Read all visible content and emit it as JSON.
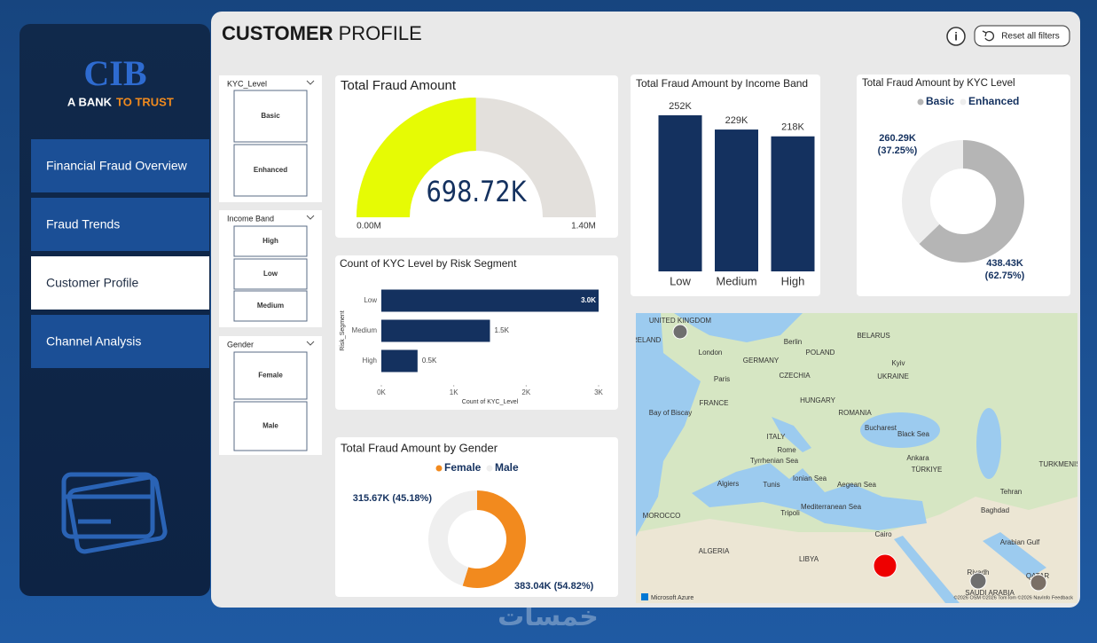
{
  "sidebar": {
    "logo": "CIB",
    "tagline": [
      "A BANK",
      "TO TRUST"
    ],
    "nav": [
      "Financial Fraud Overview",
      "Fraud Trends",
      "Customer Profile",
      "Channel Analysis"
    ],
    "active": 2
  },
  "header": {
    "title": [
      "CUSTOMER",
      "PROFILE"
    ],
    "info": "i",
    "reset": "Reset all filters"
  },
  "slicers": [
    {
      "title": "KYC_Level",
      "items": [
        "Basic",
        "Enhanced"
      ]
    },
    {
      "title": "Income Band",
      "items": [
        "High",
        "Low",
        "Medium"
      ]
    },
    {
      "title": "Gender",
      "items": [
        "Female",
        "Male"
      ]
    }
  ],
  "chart_data": [
    {
      "type": "gauge",
      "title": "Total Fraud Amount",
      "value": 698720,
      "value_label": "698.72K",
      "min": {
        "value": 0,
        "label": "0.00M"
      },
      "max": {
        "value": 1400000,
        "label": "1.40M"
      },
      "color": "#e6fb04",
      "track_color": "#e3e0dc"
    },
    {
      "type": "hbar",
      "title": "Count of KYC Level by Risk Segment",
      "categories": [
        "Low",
        "Medium",
        "High"
      ],
      "values": [
        3000,
        1500,
        500
      ],
      "value_labels": [
        "3.0K",
        "1.5K",
        "0.5K"
      ],
      "xlim": [
        0,
        3000
      ],
      "xticks": [
        {
          "value": 0,
          "label": "0K"
        },
        {
          "value": 1000,
          "label": "1K"
        },
        {
          "value": 2000,
          "label": "2K"
        },
        {
          "value": 3000,
          "label": "3K"
        }
      ],
      "x_label": "Count of KYC_Level",
      "y_label": "Risk_Segment",
      "color": "#14315f"
    },
    {
      "type": "bar",
      "title": "Total Fraud Amount by Income Band",
      "categories": [
        "Low",
        "Medium",
        "High"
      ],
      "values": [
        252000,
        229000,
        218000
      ],
      "value_labels": [
        "252K",
        "229K",
        "218K"
      ],
      "color": "#14315f"
    },
    {
      "type": "donut",
      "title": "Total Fraud Amount by KYC Level",
      "categories": [
        "Basic",
        "Enhanced"
      ],
      "values": [
        438430,
        260290
      ],
      "value_labels": [
        "438.43K (62.75%)",
        "260.29K (37.25%)"
      ],
      "colors": [
        "#b5b5b5",
        "#ededed"
      ]
    },
    {
      "type": "donut",
      "title": "Total Fraud Amount by Gender",
      "categories": [
        "Female",
        "Male"
      ],
      "values": [
        383040,
        315670
      ],
      "value_labels": [
        "383.04K (54.82%)",
        "315.67K (45.18%)"
      ],
      "colors": [
        "#f28a1e",
        "#efefef"
      ]
    }
  ],
  "map": {
    "labels": [
      "UNITED KINGDOM",
      "IRELAND",
      "London",
      "Paris",
      "FRANCE",
      "Bay of Biscay",
      "GERMANY",
      "Berlin",
      "POLAND",
      "CZECHIA",
      "BELARUS",
      "Kyiv",
      "UKRAINE",
      "HUNGARY",
      "ROMANIA",
      "Bucharest",
      "Black Sea",
      "ITALY",
      "Rome",
      "Tyrrhenian Sea",
      "Algiers",
      "Tunis",
      "Ionian Sea",
      "Aegean Sea",
      "Ankara",
      "TÜRKIYE",
      "Mediterranean Sea",
      "Tripoli",
      "MOROCCO",
      "ALGERIA",
      "LIBYA",
      "Cairo",
      "Baghdad",
      "Tehran",
      "TURKMENIS",
      "Riyadh",
      "SAUDI ARABIA",
      "QATAR",
      "Arabian Gulf"
    ],
    "attribution": "Microsoft Azure",
    "credits": "©2026 OSM ©2026 TomTom ©2026 NavInfo Feedback"
  },
  "watermark": "خمسات"
}
